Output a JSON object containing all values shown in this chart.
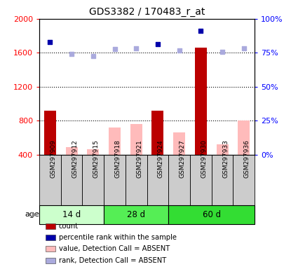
{
  "title": "GDS3382 / 170483_r_at",
  "samples": [
    "GSM297909",
    "GSM297912",
    "GSM297915",
    "GSM297918",
    "GSM297921",
    "GSM297924",
    "GSM297927",
    "GSM297930",
    "GSM297933",
    "GSM297936"
  ],
  "groups": [
    {
      "label": "14 d",
      "color": "#ccffcc",
      "samples": [
        0,
        1,
        2
      ]
    },
    {
      "label": "28 d",
      "color": "#55ee55",
      "samples": [
        3,
        4,
        5
      ]
    },
    {
      "label": "60 d",
      "color": "#33dd33",
      "samples": [
        6,
        7,
        8,
        9
      ]
    }
  ],
  "count_values": [
    920,
    null,
    null,
    null,
    null,
    920,
    null,
    1660,
    null,
    null
  ],
  "count_absent_values": [
    null,
    490,
    460,
    720,
    760,
    null,
    660,
    null,
    520,
    800
  ],
  "percentile_values": [
    1730,
    null,
    null,
    null,
    null,
    1700,
    null,
    1860,
    null,
    null
  ],
  "rank_absent_values": [
    null,
    1590,
    1560,
    1640,
    1650,
    null,
    1630,
    null,
    1610,
    1650
  ],
  "left_ylim": [
    400,
    2000
  ],
  "left_yticks": [
    400,
    800,
    1200,
    1600,
    2000
  ],
  "right_ylim": [
    0,
    100
  ],
  "right_yticks": [
    0,
    25,
    50,
    75,
    100
  ],
  "right_yticklabels": [
    "0%",
    "25%",
    "50%",
    "75%",
    "100%"
  ],
  "bar_width": 0.55,
  "color_count": "#bb0000",
  "color_count_absent": "#ffbbbb",
  "color_percentile": "#0000aa",
  "color_rank_absent": "#aaaadd",
  "bg_color": "#ffffff",
  "label_box_color": "#cccccc"
}
